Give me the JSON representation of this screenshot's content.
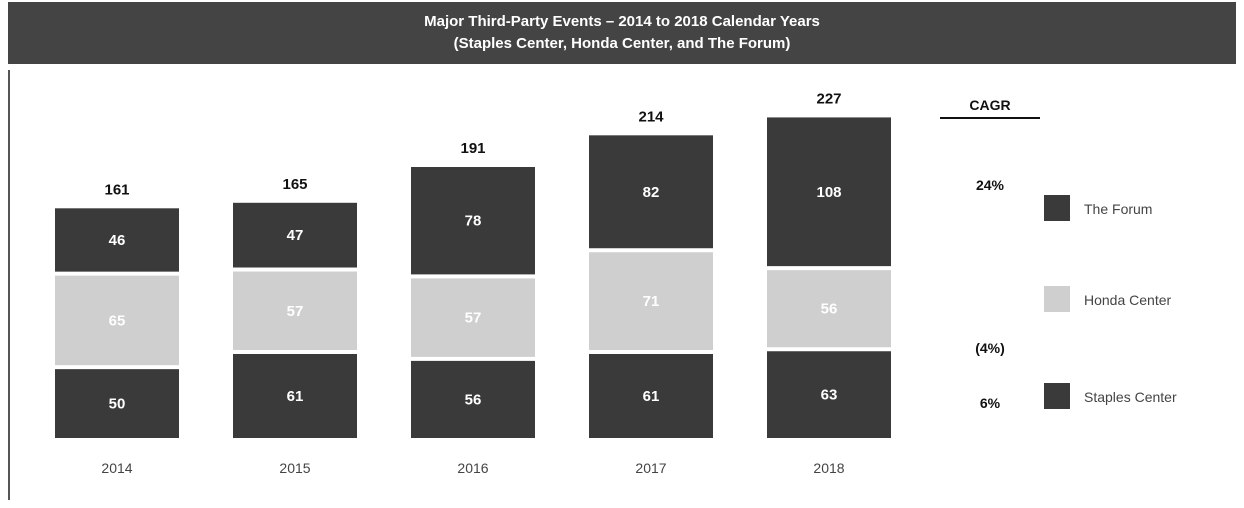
{
  "chart_data": {
    "type": "bar",
    "stacked": true,
    "title": "Major Third-Party Events – 2014 to 2018 Calendar Years",
    "subtitle": "(Staples Center, Honda Center, and The Forum)",
    "categories": [
      "2014",
      "2015",
      "2016",
      "2017",
      "2018"
    ],
    "series": [
      {
        "name": "Staples Center",
        "values": [
          50,
          61,
          56,
          61,
          63
        ],
        "color": "#3a3a3a",
        "label_color": "#ffffff"
      },
      {
        "name": "Honda Center",
        "values": [
          65,
          57,
          57,
          71,
          56
        ],
        "color": "#cfcfcf",
        "label_color": "#ffffff"
      },
      {
        "name": "The Forum",
        "values": [
          46,
          47,
          78,
          82,
          108
        ],
        "color": "#3a3a3a",
        "label_color": "#ffffff"
      }
    ],
    "totals": [
      "161",
      "165",
      "191",
      "214",
      "227"
    ],
    "cagr": {
      "header": "CAGR",
      "values": {
        "The Forum": "24%",
        "Honda Center": "(4%)",
        "Staples Center": "6%"
      }
    },
    "legend_order": [
      "The Forum",
      "Honda Center",
      "Staples Center"
    ],
    "legend_position": "right",
    "xlabel": "",
    "ylabel": "",
    "ylim": [
      0,
      227
    ],
    "grid": false
  },
  "colors": {
    "title_bar": "#444444",
    "dark_segment": "#3a3a3a",
    "light_segment": "#cfcfcf"
  }
}
